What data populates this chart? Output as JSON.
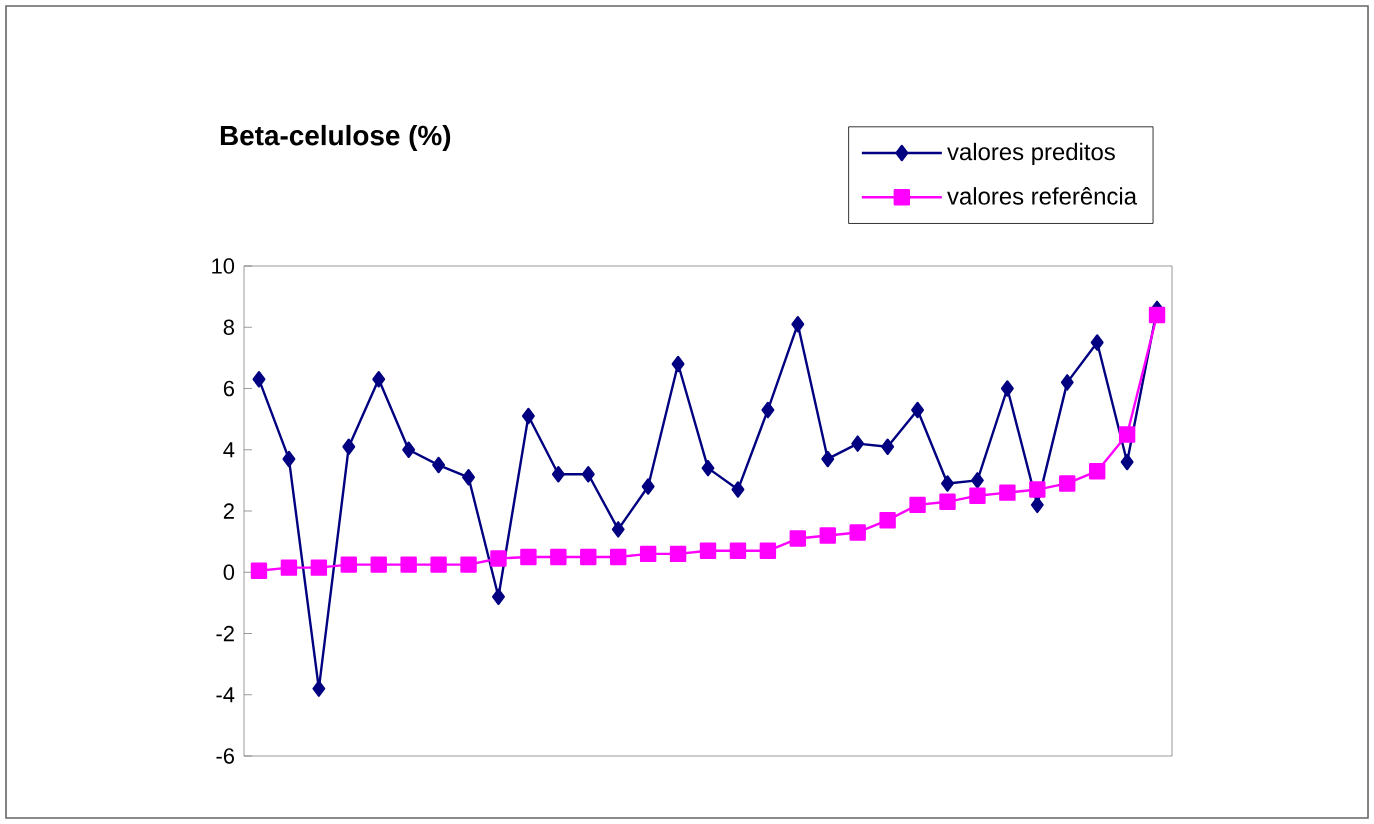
{
  "chart_data": {
    "type": "line",
    "title": "Beta-celulose (%)",
    "categories": [
      null,
      null,
      null,
      null,
      null,
      null,
      null,
      null,
      null,
      null,
      null,
      null,
      null,
      null,
      null,
      null,
      null,
      null,
      null,
      null,
      null,
      null,
      null,
      null,
      null,
      null,
      null,
      null,
      null,
      null,
      null
    ],
    "series": [
      {
        "name": "valores preditos",
        "color": "#000080",
        "marker": "diamond",
        "values": [
          6.3,
          3.7,
          -3.8,
          4.1,
          6.3,
          4.0,
          3.5,
          3.1,
          -0.8,
          5.1,
          3.2,
          3.2,
          1.4,
          2.8,
          6.8,
          3.4,
          2.7,
          5.3,
          8.1,
          3.7,
          4.2,
          4.1,
          5.3,
          2.9,
          3.0,
          6.0,
          2.2,
          6.2,
          7.5,
          3.6,
          8.6
        ]
      },
      {
        "name": "valores referência",
        "color": "#ff00ff",
        "marker": "square",
        "values": [
          0.05,
          0.15,
          0.15,
          0.25,
          0.25,
          0.25,
          0.25,
          0.25,
          0.45,
          0.5,
          0.5,
          0.5,
          0.5,
          0.6,
          0.6,
          0.7,
          0.7,
          0.7,
          1.1,
          1.2,
          1.3,
          1.7,
          2.2,
          2.3,
          2.5,
          2.6,
          2.7,
          2.9,
          3.3,
          4.5,
          8.4
        ]
      }
    ],
    "ylim": [
      -6,
      10
    ],
    "yticks": [
      -6,
      -4,
      -2,
      0,
      2,
      4,
      6,
      8,
      10
    ],
    "tick_labels": "y",
    "grid": false,
    "legend": "top right",
    "line_style": "solid"
  }
}
